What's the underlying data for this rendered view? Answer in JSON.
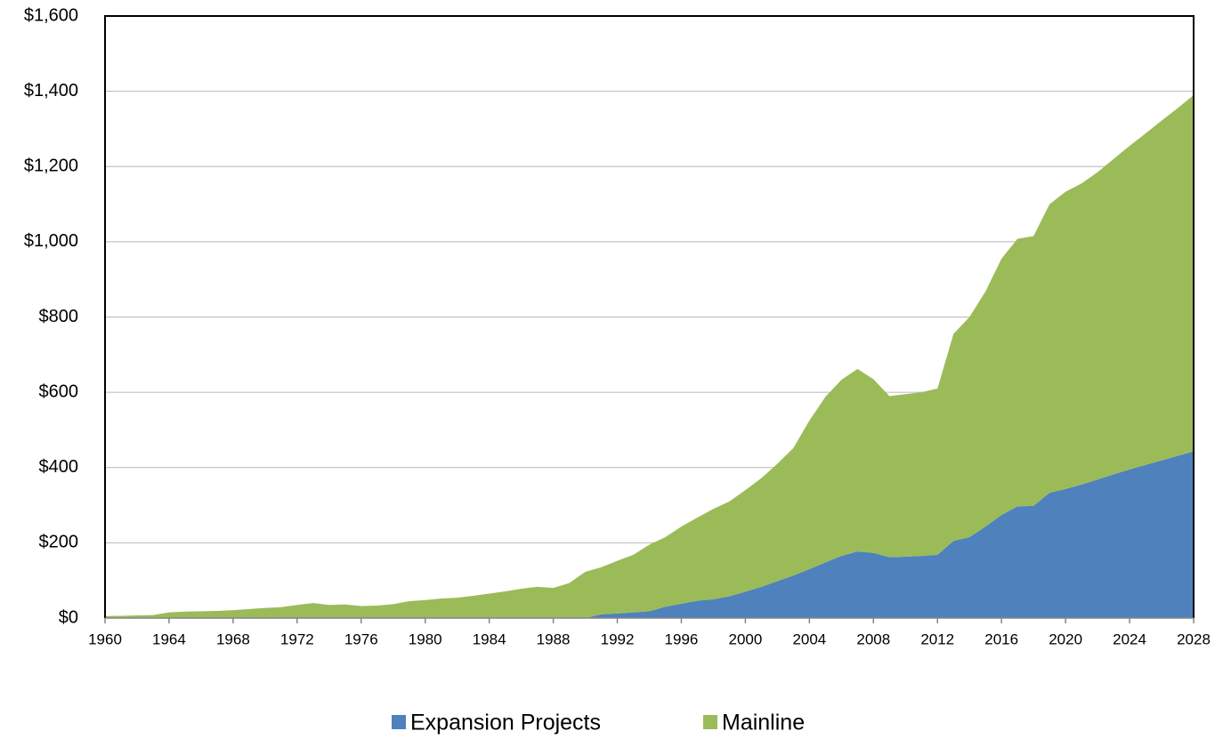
{
  "chart_data": {
    "type": "stacked-area",
    "x": [
      1960,
      1961,
      1962,
      1963,
      1964,
      1965,
      1966,
      1967,
      1968,
      1969,
      1970,
      1971,
      1972,
      1973,
      1974,
      1975,
      1976,
      1977,
      1978,
      1979,
      1980,
      1981,
      1982,
      1983,
      1984,
      1985,
      1986,
      1987,
      1988,
      1989,
      1990,
      1991,
      1992,
      1993,
      1994,
      1995,
      1996,
      1997,
      1998,
      1999,
      2000,
      2001,
      2002,
      2003,
      2004,
      2005,
      2006,
      2007,
      2008,
      2009,
      2010,
      2011,
      2012,
      2013,
      2014,
      2015,
      2016,
      2017,
      2018,
      2019,
      2020,
      2021,
      2022,
      2023,
      2024,
      2025,
      2026,
      2027,
      2028
    ],
    "series": [
      {
        "name": "Expansion Projects",
        "color": "#4f81bd",
        "values": [
          0,
          0,
          0,
          0,
          0,
          0,
          0,
          0,
          0,
          0,
          0,
          0,
          0,
          0,
          0,
          0,
          0,
          0,
          0,
          0,
          0,
          0,
          0,
          0,
          0,
          0,
          0,
          0,
          0,
          0,
          0,
          10,
          12,
          15,
          18,
          30,
          38,
          46,
          50,
          58,
          70,
          83,
          98,
          113,
          130,
          148,
          165,
          177,
          173,
          162,
          163,
          165,
          168,
          205,
          215,
          243,
          274,
          297,
          298,
          333,
          343,
          355,
          368,
          382,
          395,
          407,
          419,
          431,
          443
        ]
      },
      {
        "name": "Mainline",
        "color": "#9bbb59",
        "values": [
          5,
          6,
          7,
          8,
          15,
          17,
          18,
          19,
          21,
          24,
          27,
          29,
          35,
          40,
          35,
          36,
          32,
          33,
          37,
          45,
          48,
          52,
          54,
          59,
          65,
          71,
          78,
          83,
          80,
          93,
          123,
          125,
          140,
          153,
          177,
          185,
          205,
          221,
          240,
          252,
          270,
          289,
          312,
          339,
          395,
          440,
          468,
          485,
          462,
          428,
          432,
          435,
          442,
          550,
          585,
          625,
          681,
          711,
          717,
          767,
          790,
          800,
          817,
          838,
          860,
          881,
          903,
          924,
          947
        ]
      }
    ],
    "xlim": [
      1960,
      2028
    ],
    "xticks": [
      1960,
      1964,
      1968,
      1972,
      1976,
      1980,
      1984,
      1988,
      1992,
      1996,
      2000,
      2004,
      2008,
      2012,
      2016,
      2020,
      2024,
      2028
    ],
    "ylim": [
      0,
      1600
    ],
    "yticks": [
      {
        "value": 0,
        "label": "$0"
      },
      {
        "value": 200,
        "label": "$200"
      },
      {
        "value": 400,
        "label": "$400"
      },
      {
        "value": 600,
        "label": "$600"
      },
      {
        "value": 800,
        "label": "$800"
      },
      {
        "value": 1000,
        "label": "$1,000"
      },
      {
        "value": 1200,
        "label": "$1,200"
      },
      {
        "value": 1400,
        "label": "$1,400"
      },
      {
        "value": 1600,
        "label": "$1,600"
      }
    ],
    "grid": true
  }
}
